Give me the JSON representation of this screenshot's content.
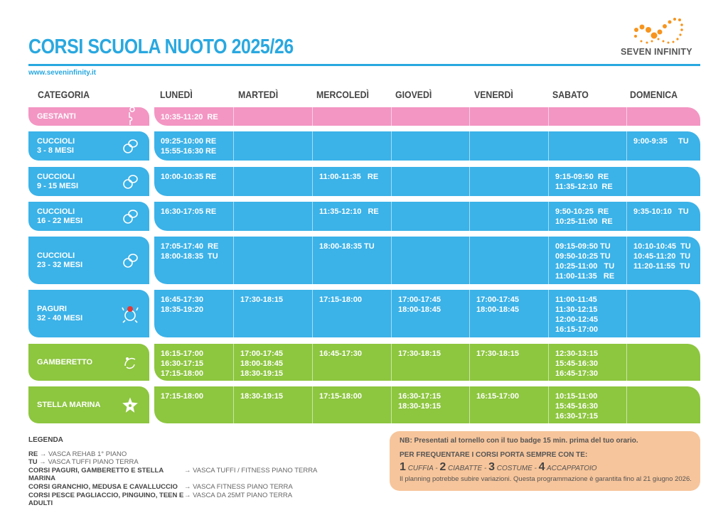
{
  "header": {
    "title": "CORSI SCUOLA NUOTO 2025/26",
    "url": "www.seveninfinity.it",
    "logo_text": "SEVEN INFINITY"
  },
  "colors": {
    "title": "#29a8e0",
    "pink": "#f396c3",
    "blue": "#3bb2e8",
    "green": "#8dc63f",
    "note_bg": "#f7c59b",
    "logo": "#f7941d"
  },
  "columns": [
    "CATEGORIA",
    "LUNEDÌ",
    "MARTEDÌ",
    "MERCOLEDÌ",
    "GIOVEDÌ",
    "VENERDÌ",
    "SABATO",
    "DOMENICA"
  ],
  "rows": [
    {
      "category": "GESTANTI",
      "icon": "pregnant-icon",
      "color": "pink",
      "cells": [
        "10:35-11:20  RE",
        "",
        "",
        "",
        "",
        "",
        ""
      ]
    },
    {
      "category": "CUCCIOLI\n3 - 8 MESI",
      "icon": "pacifier-icon",
      "color": "blue",
      "cells": [
        "09:25-10:00 RE\n15:55-16:30 RE",
        "",
        "",
        "",
        "",
        "",
        "9:00-9:35     TU"
      ]
    },
    {
      "category": "CUCCIOLI\n9 - 15 MESI",
      "icon": "pacifier-icon",
      "color": "blue",
      "cells": [
        "10:00-10:35 RE",
        "",
        "11:00-11:35   RE",
        "",
        "",
        "9:15-09:50  RE\n11:35-12:10  RE",
        ""
      ]
    },
    {
      "category": "CUCCIOLI\n16 - 22 MESI",
      "icon": "pacifier-icon",
      "color": "blue",
      "cells": [
        "16:30-17:05 RE",
        "",
        "11:35-12:10   RE",
        "",
        "",
        "9:50-10:25  RE\n10:25-11:00  RE",
        "9:35-10:10   TU"
      ]
    },
    {
      "category": "CUCCIOLI\n23 - 32 MESI",
      "icon": "pacifier-icon",
      "color": "blue",
      "cells": [
        "17:05-17:40  RE\n18:00-18:35  TU",
        "",
        "18:00-18:35 TU",
        "",
        "",
        "09:15-09:50 TU\n09:50-10:25 TU\n10:25-11:00   TU\n11:00-11:35   RE",
        "10:10-10:45  TU\n10:45-11:20  TU\n11:20-11:55  TU"
      ]
    },
    {
      "category": "PAGURI\n32 - 40 MESI",
      "icon": "crab-icon",
      "color": "blue",
      "cells": [
        "16:45-17:30\n18:35-19:20",
        "17:30-18:15",
        "17:15-18:00",
        "17:00-17:45\n18:00-18:45",
        "17:00-17:45\n18:00-18:45",
        "11:00-11:45\n11:30-12:15\n12:00-12:45\n16:15-17:00",
        ""
      ]
    },
    {
      "category": "GAMBERETTO",
      "icon": "shrimp-icon",
      "color": "green",
      "cells": [
        "16:15-17:00\n16:30-17:15\n17:15-18:00",
        "17:00-17:45\n18:00-18:45\n18:30-19:15",
        "16:45-17:30",
        "17:30-18:15",
        "17:30-18:15",
        "12:30-13:15\n15:45-16:30\n16:45-17:30",
        ""
      ]
    },
    {
      "category": "STELLA MARINA",
      "icon": "starfish-icon",
      "color": "green",
      "cells": [
        "17:15-18:00",
        "18:30-19:15",
        "17:15-18:00",
        "16:30-17:15\n18:30-19:15",
        "16:15-17:00",
        "10:15-11:00\n15:45-16:30\n16:30-17:15",
        ""
      ]
    }
  ],
  "legend": {
    "title": "LEGENDA",
    "pools": [
      {
        "key": "RE",
        "value": "VASCA REHAB  1° PIANO"
      },
      {
        "key": "TU",
        "value": "VASCA TUFFI PIANO TERRA"
      }
    ],
    "courses": [
      {
        "key": "CORSI PAGURI, GAMBERETTO E STELLA MARINA",
        "value": "VASCA TUFFI / FITNESS PIANO TERRA"
      },
      {
        "key": "CORSI GRANCHIO, MEDUSA E CAVALLUCCIO",
        "value": "VASCA FITNESS PIANO TERRA"
      },
      {
        "key": "CORSI PESCE PAGLIACCIO, PINGUINO, TEEN E ADULTI",
        "value": "VASCA DA 25MT PIANO TERRA"
      }
    ]
  },
  "note": {
    "nb": "NB: Presentati al tornello con il tuo badge 15 min. prima del tuo orario.",
    "bring_title": "PER FREQUENTARE I CORSI PORTA SEMPRE CON TE:",
    "items": [
      {
        "n": "1",
        "label": "CUFFIA"
      },
      {
        "n": "2",
        "label": "CIABATTE"
      },
      {
        "n": "3",
        "label": "COSTUME"
      },
      {
        "n": "4",
        "label": "ACCAPPATOIO"
      }
    ],
    "disclaimer": "Il planning potrebbe subire variazioni. Questa programmazione è garantita fino al 21 giugno 2026."
  }
}
